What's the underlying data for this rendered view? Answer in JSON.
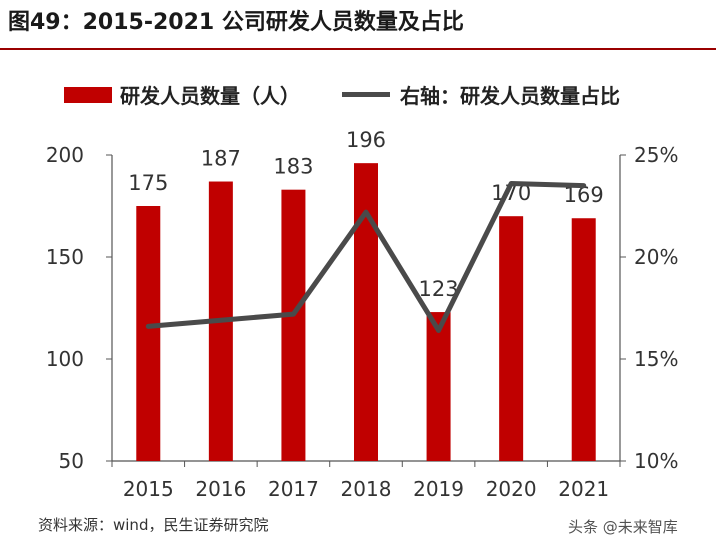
{
  "title": "图49：2015-2021 公司研发人员数量及占比",
  "legend": {
    "bar_label": "研发人员数量（人）",
    "line_label": "右轴：研发人员数量占比"
  },
  "source": "资料来源：wind，民生证券研究院",
  "watermark": "头条 @未来智库",
  "colors": {
    "bar": "#c00000",
    "line": "#4a4a4a",
    "title_rule": "#9a0000"
  },
  "chart_data": {
    "type": "bar",
    "categories": [
      "2015",
      "2016",
      "2017",
      "2018",
      "2019",
      "2020",
      "2021"
    ],
    "series": [
      {
        "name": "研发人员数量（人）",
        "type": "bar",
        "axis": "left",
        "values": [
          175,
          187,
          183,
          196,
          123,
          170,
          169
        ]
      },
      {
        "name": "右轴：研发人员数量占比",
        "type": "line",
        "axis": "right",
        "values": [
          16.6,
          16.9,
          17.2,
          22.2,
          16.4,
          23.6,
          23.5
        ]
      }
    ],
    "left_axis": {
      "min": 50,
      "max": 200,
      "ticks": [
        50,
        100,
        150,
        200
      ]
    },
    "right_axis": {
      "min": 10,
      "max": 25,
      "ticks": [
        "10%",
        "15%",
        "20%",
        "25%"
      ]
    },
    "data_labels": [
      "175",
      "187",
      "183",
      "196",
      "123",
      "170",
      "169"
    ],
    "grid": false,
    "legend_position": "top"
  }
}
